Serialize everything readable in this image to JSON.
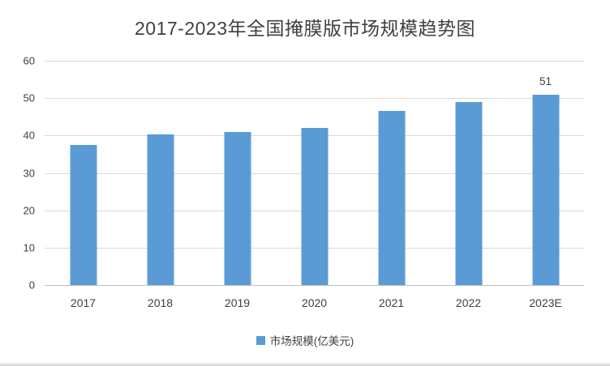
{
  "chart_data": {
    "type": "bar",
    "title": "2017-2023年全国掩膜版市场规模趋势图",
    "categories": [
      "2017",
      "2018",
      "2019",
      "2020",
      "2021",
      "2022",
      "2023E"
    ],
    "series": [
      {
        "name": "市场规模(亿美元)",
        "values": [
          37.5,
          40.3,
          41,
          42,
          46.5,
          49,
          51
        ]
      }
    ],
    "xlabel": "",
    "ylabel": "",
    "ylim": [
      0,
      60
    ],
    "yticks": [
      0,
      10,
      20,
      30,
      40,
      50,
      60
    ],
    "grid": true,
    "legend": "市场规模(亿美元)",
    "legend_position": "bottom",
    "bar_color": "#5b9bd5",
    "data_labels": [
      {
        "index": 6,
        "text": "51"
      }
    ]
  }
}
